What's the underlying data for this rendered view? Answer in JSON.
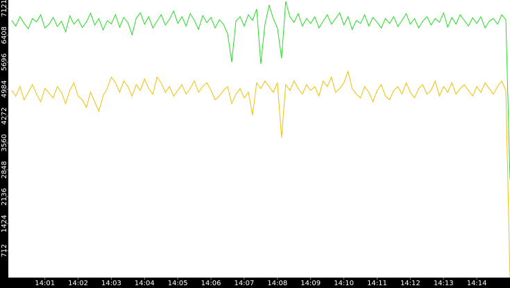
{
  "chart_data": {
    "type": "line",
    "x": [
      840,
      840.125,
      840.25,
      840.375,
      840.5,
      840.625,
      840.75,
      840.875,
      841,
      841.125,
      841.25,
      841.375,
      841.5,
      841.625,
      841.75,
      841.875,
      842,
      842.125,
      842.25,
      842.375,
      842.5,
      842.625,
      842.75,
      842.875,
      843,
      843.125,
      843.25,
      843.375,
      843.5,
      843.625,
      843.75,
      843.875,
      844,
      844.125,
      844.25,
      844.375,
      844.5,
      844.625,
      844.75,
      844.875,
      845,
      845.125,
      845.25,
      845.375,
      845.5,
      845.625,
      845.75,
      845.875,
      846,
      846.125,
      846.25,
      846.375,
      846.5,
      846.625,
      846.75,
      846.875,
      847,
      847.125,
      847.25,
      847.375,
      847.5,
      847.625,
      847.75,
      847.875,
      848,
      848.125,
      848.25,
      848.375,
      848.5,
      848.625,
      848.75,
      848.875,
      849,
      849.125,
      849.25,
      849.375,
      849.5,
      849.625,
      849.75,
      849.875,
      850,
      850.125,
      850.25,
      850.375,
      850.5,
      850.625,
      850.75,
      850.875,
      851,
      851.125,
      851.25,
      851.375,
      851.5,
      851.625,
      851.75,
      851.875,
      852,
      852.125,
      852.25,
      852.375,
      852.5,
      852.625,
      852.75,
      852.875,
      853,
      853.125,
      853.25,
      853.375,
      853.5,
      853.625,
      853.75,
      853.875,
      854,
      854.125,
      854.25,
      854.375,
      854.5,
      854.625,
      854.75,
      854.875,
      855
    ],
    "series": [
      {
        "color": "#22dd22",
        "values": [
          6800,
          6650,
          6900,
          6720,
          6580,
          6850,
          6760,
          6950,
          6600,
          6700,
          6880,
          6640,
          6780,
          6500,
          6920,
          6700,
          6830,
          6610,
          6760,
          6990,
          6680,
          6850,
          6550,
          6790,
          6710,
          6950,
          6620,
          6880,
          6740,
          6420,
          6860,
          7000,
          6700,
          6900,
          6600,
          6780,
          6950,
          6680,
          6830,
          7050,
          6720,
          6900,
          6650,
          6980,
          6800,
          6560,
          6930,
          6740,
          6880,
          6600,
          6820,
          6700,
          6450,
          5700,
          6780,
          6900,
          6650,
          6950,
          6800,
          7100,
          5650,
          6700,
          7200,
          6850,
          6600,
          5800,
          7300,
          6900,
          6750,
          6980,
          6650,
          6850,
          6720,
          6900,
          6600,
          6780,
          6950,
          6700,
          6850,
          7000,
          6680,
          6900,
          6560,
          6800,
          6720,
          6950,
          6650,
          6880,
          6750,
          6600,
          6850,
          6720,
          6900,
          6640,
          6800,
          6980,
          6700,
          6850,
          6600,
          6780,
          6900,
          6680,
          6850,
          6750,
          7000,
          6620,
          6880,
          6700,
          6950,
          6800,
          6650,
          6870,
          6720,
          6900,
          6600,
          6780,
          6850,
          6700,
          6950,
          6820,
          2600
        ]
      },
      {
        "color": "#f0c000",
        "values": [
          4950,
          4800,
          5050,
          4700,
          4900,
          5100,
          4850,
          4650,
          5000,
          4880,
          4750,
          5050,
          4900,
          4600,
          4950,
          5150,
          4800,
          4700,
          4500,
          4900,
          4650,
          4400,
          4800,
          5000,
          5300,
          5150,
          4900,
          5200,
          5050,
          4800,
          5100,
          4950,
          5250,
          5000,
          4850,
          5300,
          5150,
          4900,
          5050,
          4800,
          4950,
          5100,
          4850,
          5000,
          5200,
          4900,
          5050,
          5150,
          4950,
          4700,
          4800,
          4950,
          5050,
          4600,
          4850,
          5000,
          4750,
          4900,
          4300,
          5150,
          5000,
          5200,
          5050,
          4900,
          5150,
          3700,
          5100,
          4950,
          5200,
          5000,
          4850,
          5100,
          4950,
          5050,
          4800,
          5200,
          5050,
          5300,
          4900,
          5000,
          5150,
          5450,
          5000,
          4850,
          4750,
          5050,
          4900,
          4650,
          4950,
          5100,
          4800,
          4700,
          4950,
          5050,
          4850,
          5150,
          4900,
          4750,
          5000,
          5100,
          4850,
          4950,
          5200,
          4800,
          5050,
          4900,
          5150,
          4850,
          5000,
          5100,
          4950,
          4800,
          5050,
          4900,
          5150,
          5000,
          4850,
          5050,
          5200,
          4950,
          0
        ]
      }
    ],
    "xlim": [
      839.9,
      855
    ],
    "ylim": [
      0,
      7340
    ],
    "xticks": [
      {
        "value": 841,
        "label": "14:01"
      },
      {
        "value": 842,
        "label": "14:02"
      },
      {
        "value": 843,
        "label": "14:03"
      },
      {
        "value": 844,
        "label": "14:04"
      },
      {
        "value": 845,
        "label": "14:05"
      },
      {
        "value": 846,
        "label": "14:06"
      },
      {
        "value": 847,
        "label": "14:07"
      },
      {
        "value": 848,
        "label": "14:08"
      },
      {
        "value": 849,
        "label": "14:09"
      },
      {
        "value": 850,
        "label": "14:10"
      },
      {
        "value": 851,
        "label": "14:11"
      },
      {
        "value": 852,
        "label": "14:12"
      },
      {
        "value": 853,
        "label": "14:13"
      },
      {
        "value": 854,
        "label": "14:14"
      }
    ],
    "yticks": [
      712,
      1424,
      2136,
      2848,
      3560,
      4272,
      4984,
      5696,
      6408,
      7121
    ]
  }
}
